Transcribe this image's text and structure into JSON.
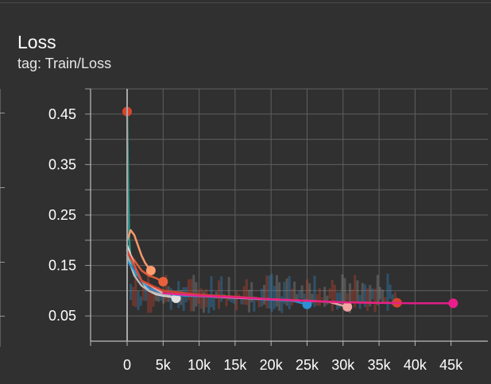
{
  "card": {
    "title": "Loss",
    "tag": "tag: Train/Loss"
  },
  "colors": {
    "background": "#303030",
    "grid": "#5f5f5f",
    "axis": "#bdbdbd",
    "text": "#ffffff"
  },
  "chart_data": {
    "type": "line",
    "title": "",
    "xlabel": "",
    "ylabel": "",
    "xlim": [
      -5000,
      49500
    ],
    "ylim": [
      0.0,
      0.5
    ],
    "y_ticks": [
      0.45,
      0.35,
      0.25,
      0.15,
      0.05
    ],
    "y_tick_labels": [
      "0.45",
      "0.35",
      "0.25",
      "0.15",
      "0.05"
    ],
    "x_ticks": [
      0,
      5000,
      10000,
      15000,
      20000,
      25000,
      30000,
      35000,
      40000,
      45000
    ],
    "x_tick_labels": [
      "0",
      "5k",
      "10k",
      "15k",
      "20k",
      "25k",
      "30k",
      "35k",
      "40k",
      "45k"
    ],
    "grid": true,
    "legend": "none",
    "series": [
      {
        "color": "#2a9d8f",
        "x": [
          0,
          150,
          300,
          500,
          800,
          1200
        ],
        "y": [
          0.455,
          0.3,
          0.2,
          0.16,
          0.14,
          0.13
        ],
        "end": null
      },
      {
        "color": "#ff9d6e",
        "x": [
          0,
          500,
          1000,
          1500,
          2000,
          2500,
          3000,
          3300
        ],
        "y": [
          0.2,
          0.22,
          0.21,
          0.19,
          0.17,
          0.155,
          0.145,
          0.14
        ],
        "end": [
          3300,
          0.14
        ]
      },
      {
        "color": "#e8613c",
        "x": [
          0,
          1000,
          2000,
          3000,
          4000,
          5000
        ],
        "y": [
          0.18,
          0.16,
          0.14,
          0.13,
          0.125,
          0.118
        ],
        "end": [
          5000,
          0.118
        ]
      },
      {
        "color": "#e0e0e0",
        "x": [
          0,
          1000,
          2000,
          3000,
          4000,
          5000,
          6000,
          6800
        ],
        "y": [
          0.19,
          0.15,
          0.12,
          0.1,
          0.093,
          0.09,
          0.088,
          0.085
        ],
        "end": [
          6800,
          0.085
        ]
      },
      {
        "color": "#bdbdbd",
        "x": [
          0,
          1000,
          2000,
          3000,
          4000,
          5000,
          6000
        ],
        "y": [
          0.17,
          0.13,
          0.11,
          0.1,
          0.095,
          0.092,
          0.09
        ],
        "end": null
      },
      {
        "color": "#2d8fd5",
        "x": [
          0,
          1000,
          2000,
          3000,
          5000,
          8000,
          12000,
          16000,
          20000,
          23000,
          25000
        ],
        "y": [
          0.16,
          0.14,
          0.12,
          0.105,
          0.095,
          0.09,
          0.088,
          0.085,
          0.082,
          0.08,
          0.073
        ],
        "end": [
          25000,
          0.073
        ]
      },
      {
        "color": "#f3a6a1",
        "x": [
          0,
          2000,
          5000,
          10000,
          15000,
          20000,
          25000,
          28000,
          30600
        ],
        "y": [
          0.18,
          0.12,
          0.095,
          0.09,
          0.086,
          0.083,
          0.08,
          0.078,
          0.068
        ],
        "end": [
          30600,
          0.068
        ]
      },
      {
        "color": "#d8442c",
        "x": [
          0,
          2000,
          5000,
          10000,
          15000,
          20000,
          25000,
          30000,
          35000,
          37500
        ],
        "y": [
          0.18,
          0.12,
          0.1,
          0.092,
          0.088,
          0.083,
          0.08,
          0.077,
          0.076,
          0.076
        ],
        "end": [
          37500,
          0.076
        ]
      },
      {
        "color": "#e91e8c",
        "x": [
          5000,
          10000,
          15000,
          20000,
          25000,
          30000,
          35000,
          40000,
          45300
        ],
        "y": [
          0.095,
          0.09,
          0.087,
          0.083,
          0.08,
          0.077,
          0.076,
          0.075,
          0.075
        ],
        "end": [
          45300,
          0.075
        ]
      }
    ],
    "start_marker": [
      0,
      0.455
    ]
  }
}
